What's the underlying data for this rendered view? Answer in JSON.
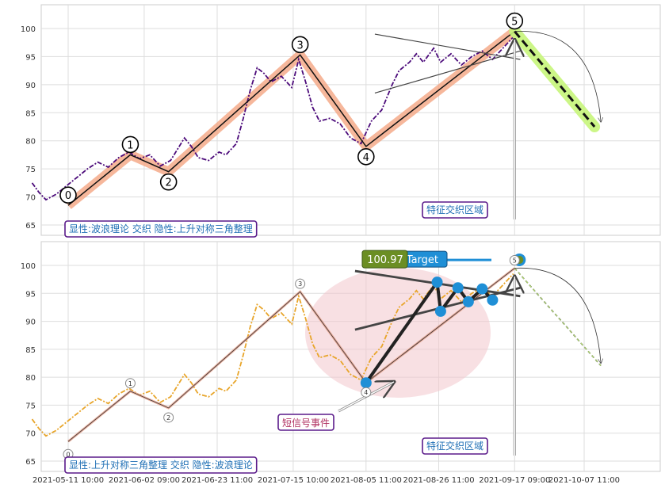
{
  "chart_data": {
    "type": "line",
    "x_dates": [
      "2021-05-11 10:00",
      "2021-06-02 09:00",
      "2021-06-23 11:00",
      "2021-07-15 10:00",
      "2021-08-05 11:00",
      "2021-08-26 11:00",
      "2021-09-17 09:00",
      "2021-10-07 11:00"
    ],
    "ylim": [
      63,
      104
    ],
    "yticks": [
      65,
      70,
      75,
      80,
      85,
      90,
      95,
      100
    ],
    "grid": true,
    "wave_points": [
      {
        "label": "0",
        "x": "2021-05-11 10:00",
        "y": 68.5
      },
      {
        "label": "1",
        "x": "2021-05-29 09:00",
        "y": 77.5
      },
      {
        "label": "2",
        "x": "2021-06-09 10:00",
        "y": 74.5
      },
      {
        "label": "3",
        "x": "2021-07-17 10:00",
        "y": 95.3
      },
      {
        "label": "4",
        "x": "2021-08-05 11:00",
        "y": 79.0
      },
      {
        "label": "5",
        "x": "2021-09-17 09:00",
        "y": 99.5
      }
    ],
    "price_series": [
      [
        "2021-05-01",
        72.5
      ],
      [
        "2021-05-03",
        70.8
      ],
      [
        "2021-05-05",
        69.5
      ],
      [
        "2021-05-08",
        70.5
      ],
      [
        "2021-05-11",
        72.0
      ],
      [
        "2021-05-14",
        73.5
      ],
      [
        "2021-05-17",
        75.0
      ],
      [
        "2021-05-20",
        76.2
      ],
      [
        "2021-05-23",
        75.3
      ],
      [
        "2021-05-26",
        77.0
      ],
      [
        "2021-05-29",
        78.0
      ],
      [
        "2021-06-01",
        76.8
      ],
      [
        "2021-06-04",
        77.5
      ],
      [
        "2021-06-07",
        75.5
      ],
      [
        "2021-06-10",
        76.5
      ],
      [
        "2021-06-12",
        78.5
      ],
      [
        "2021-06-14",
        80.5
      ],
      [
        "2021-06-16",
        79.0
      ],
      [
        "2021-06-18",
        77.0
      ],
      [
        "2021-06-21",
        76.5
      ],
      [
        "2021-06-24",
        78.0
      ],
      [
        "2021-06-26",
        77.5
      ],
      [
        "2021-06-29",
        79.5
      ],
      [
        "2021-07-01",
        84.0
      ],
      [
        "2021-07-03",
        89.0
      ],
      [
        "2021-07-05",
        93.0
      ],
      [
        "2021-07-07",
        92.0
      ],
      [
        "2021-07-09",
        90.5
      ],
      [
        "2021-07-12",
        91.5
      ],
      [
        "2021-07-15",
        89.5
      ],
      [
        "2021-07-17",
        94.5
      ],
      [
        "2021-07-19",
        90.5
      ],
      [
        "2021-07-21",
        86.0
      ],
      [
        "2021-07-23",
        83.5
      ],
      [
        "2021-07-26",
        84.0
      ],
      [
        "2021-07-29",
        83.0
      ],
      [
        "2021-08-01",
        80.5
      ],
      [
        "2021-08-04",
        79.5
      ],
      [
        "2021-08-07",
        83.5
      ],
      [
        "2021-08-10",
        85.5
      ],
      [
        "2021-08-13",
        90.0
      ],
      [
        "2021-08-15",
        92.5
      ],
      [
        "2021-08-18",
        94.0
      ],
      [
        "2021-08-20",
        95.5
      ],
      [
        "2021-08-22",
        94.0
      ],
      [
        "2021-08-25",
        96.5
      ],
      [
        "2021-08-27",
        94.0
      ],
      [
        "2021-08-30",
        95.5
      ],
      [
        "2021-09-02",
        93.5
      ],
      [
        "2021-09-05",
        95.0
      ],
      [
        "2021-09-08",
        96.0
      ],
      [
        "2021-09-11",
        94.5
      ],
      [
        "2021-09-14",
        96.5
      ],
      [
        "2021-09-17",
        98.5
      ]
    ],
    "triangle_lines": [
      {
        "from": [
          "2021-08-08",
          99.0
        ],
        "to": [
          "2021-09-19",
          94.5
        ]
      },
      {
        "from": [
          "2021-08-08",
          88.5
        ],
        "to": [
          "2021-09-19",
          96.0
        ]
      }
    ],
    "forecast": {
      "from": [
        "2021-09-17 09:00",
        99.5
      ],
      "to": [
        "2021-10-10 11:00",
        82.5
      ]
    },
    "signal_points": [
      {
        "x": "2021-08-26 00:00",
        "y": 97.0
      },
      {
        "x": "2021-08-27 00:00",
        "y": 91.8
      },
      {
        "x": "2021-09-01 00:00",
        "y": 96.0
      },
      {
        "x": "2021-09-04 00:00",
        "y": 93.5
      },
      {
        "x": "2021-09-08 00:00",
        "y": 95.8
      },
      {
        "x": "2021-09-11 00:00",
        "y": 93.8
      }
    ],
    "target_value": 100.97,
    "panels": [
      {
        "id": "top",
        "label_box": "显性:波浪理论 交织 隐性:上升对称三角整理",
        "zone_label": "特征交织区域"
      },
      {
        "id": "bottom",
        "label_box": "显性:上升对称三角整理 交织 隐性:波浪理论",
        "zone_label": "特征交织区域",
        "signal_label": "短信号事件",
        "target_badge": "100.97",
        "target_label": "Target"
      }
    ],
    "colors": {
      "top_price": "#4b0a7a",
      "bottom_price": "#e8a52a",
      "wave_band": "#f4a582",
      "forecast_band": "#c7f57a",
      "circle_blue": "#1f8fd6",
      "target_green": "#6b8e23",
      "box_border": "#5a1a8a",
      "box_text": "#1f6fb5",
      "ellipse": "#f2c7cc"
    }
  }
}
